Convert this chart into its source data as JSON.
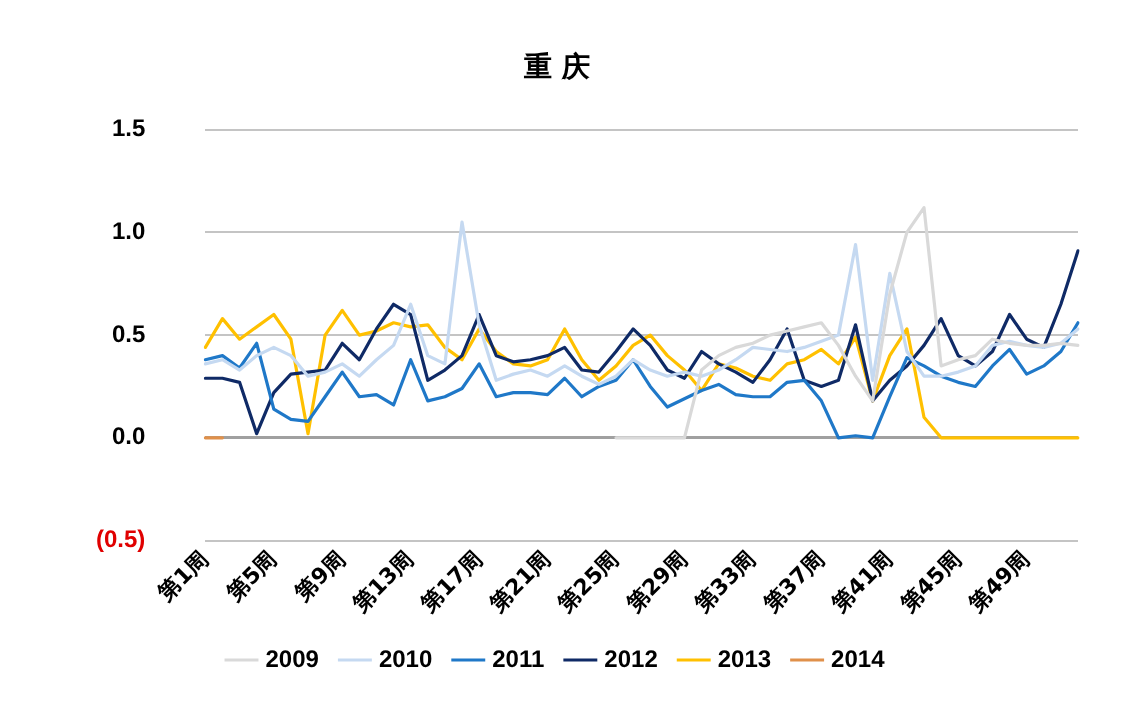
{
  "chart_data": {
    "type": "line",
    "title": "重 庆",
    "categories": [
      "第1周",
      null,
      null,
      null,
      "第5周",
      null,
      null,
      null,
      "第9周",
      null,
      null,
      null,
      "第13周",
      null,
      null,
      null,
      "第17周",
      null,
      null,
      null,
      "第21周",
      null,
      null,
      null,
      "第25周",
      null,
      null,
      null,
      "第29周",
      null,
      null,
      null,
      "第33周",
      null,
      null,
      null,
      "第37周",
      null,
      null,
      null,
      "第41周",
      null,
      null,
      null,
      "第45周",
      null,
      null,
      null,
      "第49周",
      null,
      null,
      null
    ],
    "series": [
      {
        "name": "2009",
        "color": "#d9d9d9",
        "values": [
          null,
          null,
          null,
          null,
          null,
          null,
          null,
          null,
          null,
          null,
          null,
          null,
          null,
          null,
          null,
          null,
          null,
          null,
          null,
          null,
          null,
          null,
          null,
          null,
          0,
          0,
          0,
          0,
          0,
          0.33,
          0.4,
          0.44,
          0.46,
          0.5,
          0.52,
          0.54,
          0.56,
          0.45,
          0.3,
          0.18,
          0.7,
          1.0,
          1.12,
          0.35,
          0.38,
          0.4,
          0.48,
          0.46,
          0.45,
          0.45,
          0.46,
          0.45
        ]
      },
      {
        "name": "2010",
        "color": "#c5d9f1",
        "values": [
          0.36,
          0.38,
          0.33,
          0.4,
          0.44,
          0.4,
          0.3,
          0.32,
          0.36,
          0.3,
          0.38,
          0.45,
          0.65,
          0.4,
          0.36,
          1.05,
          0.55,
          0.28,
          0.31,
          0.33,
          0.3,
          0.35,
          0.3,
          0.26,
          0.3,
          0.38,
          0.33,
          0.3,
          0.32,
          0.3,
          0.33,
          0.38,
          0.44,
          0.43,
          0.42,
          0.44,
          0.47,
          0.5,
          0.94,
          0.28,
          0.8,
          0.42,
          0.3,
          0.3,
          0.32,
          0.35,
          0.45,
          0.47,
          0.45,
          0.44,
          0.46,
          0.53
        ]
      },
      {
        "name": "2011",
        "color": "#1f78c8",
        "values": [
          0.38,
          0.4,
          0.34,
          0.46,
          0.14,
          0.09,
          0.08,
          0.2,
          0.32,
          0.2,
          0.21,
          0.16,
          0.38,
          0.18,
          0.2,
          0.24,
          0.36,
          0.2,
          0.22,
          0.22,
          0.21,
          0.29,
          0.2,
          0.25,
          0.28,
          0.38,
          0.25,
          0.15,
          0.19,
          0.23,
          0.26,
          0.21,
          0.2,
          0.2,
          0.27,
          0.28,
          0.18,
          0,
          0.01,
          0,
          0.2,
          0.39,
          0.35,
          0.3,
          0.27,
          0.25,
          0.35,
          0.43,
          0.31,
          0.35,
          0.42,
          0.56
        ]
      },
      {
        "name": "2012",
        "color": "#0f2a66",
        "values": [
          0.29,
          0.29,
          0.27,
          0.02,
          0.22,
          0.31,
          0.32,
          0.33,
          0.46,
          0.38,
          0.53,
          0.65,
          0.6,
          0.28,
          0.33,
          0.4,
          0.6,
          0.4,
          0.37,
          0.38,
          0.4,
          0.44,
          0.33,
          0.32,
          0.42,
          0.53,
          0.45,
          0.33,
          0.29,
          0.42,
          0.36,
          0.32,
          0.27,
          0.38,
          0.53,
          0.28,
          0.25,
          0.28,
          0.55,
          0.18,
          0.28,
          0.35,
          0.45,
          0.58,
          0.4,
          0.35,
          0.42,
          0.6,
          0.48,
          0.44,
          0.65,
          0.91
        ]
      },
      {
        "name": "2013",
        "color": "#ffc000",
        "values": [
          0.44,
          0.58,
          0.48,
          0.54,
          0.6,
          0.48,
          0.02,
          0.5,
          0.62,
          0.5,
          0.52,
          0.56,
          0.54,
          0.55,
          0.44,
          0.38,
          0.53,
          0.42,
          0.36,
          0.35,
          0.38,
          0.53,
          0.38,
          0.28,
          0.35,
          0.45,
          0.5,
          0.4,
          0.33,
          0.23,
          0.36,
          0.34,
          0.3,
          0.28,
          0.36,
          0.38,
          0.43,
          0.36,
          0.49,
          0.18,
          0.4,
          0.53,
          0.1,
          0,
          0,
          0,
          0,
          0,
          0,
          0,
          0,
          0
        ]
      },
      {
        "name": "2014",
        "color": "#e0904a",
        "values": [
          0,
          0,
          null,
          null,
          null,
          null,
          null,
          null,
          null,
          null,
          null,
          null,
          null,
          null,
          null,
          null,
          null,
          null,
          null,
          null,
          null,
          null,
          null,
          null,
          null,
          null,
          null,
          null,
          null,
          null,
          null,
          null,
          null,
          null,
          null,
          null,
          null,
          null,
          null,
          null,
          null,
          null,
          null,
          null,
          null,
          null,
          null,
          null,
          null,
          null,
          null,
          null
        ]
      }
    ],
    "ylim": [
      -0.5,
      1.5
    ],
    "yticks": [
      {
        "value": -0.5,
        "label": "(0.5)"
      },
      {
        "value": 0,
        "label": "0.0"
      },
      {
        "value": 0.5,
        "label": "0.5"
      },
      {
        "value": 1,
        "label": "1.0"
      },
      {
        "value": 1.5,
        "label": "1.5"
      }
    ],
    "grid": "y",
    "legend": "bottom",
    "marker": "none",
    "line_style": "solid"
  }
}
